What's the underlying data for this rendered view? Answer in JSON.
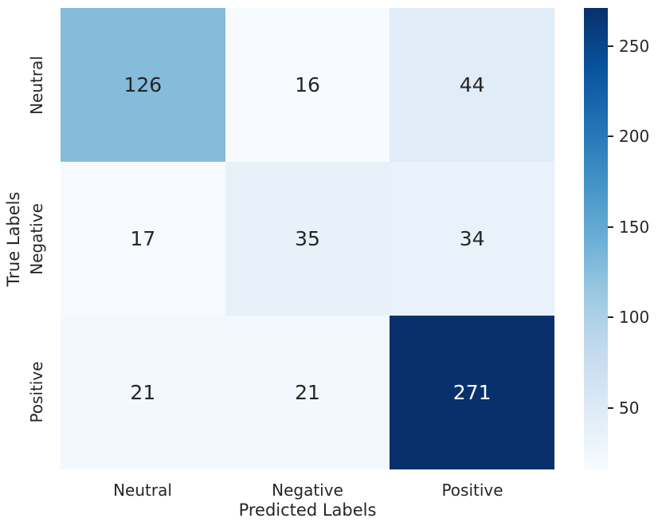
{
  "chart_data": {
    "type": "heatmap",
    "title": "",
    "xlabel": "Predicted Labels",
    "ylabel": "True Labels",
    "x_categories": [
      "Neutral",
      "Negative",
      "Positive"
    ],
    "y_categories": [
      "Neutral",
      "Negative",
      "Positive"
    ],
    "values": [
      [
        126,
        16,
        44
      ],
      [
        17,
        35,
        34
      ],
      [
        21,
        21,
        271
      ]
    ],
    "vmin": 16,
    "vmax": 271,
    "colormap": "Blues",
    "cell_colors": [
      [
        "#85bcdb",
        "#f7fbff",
        "#e0ecf7"
      ],
      [
        "#f6faff",
        "#e8f1fa",
        "#e9f2fb"
      ],
      [
        "#f2f8fd",
        "#f2f8fd",
        "#08306b"
      ]
    ],
    "annotation_colors": [
      [
        "#262626",
        "#262626",
        "#262626"
      ],
      [
        "#262626",
        "#262626",
        "#262626"
      ],
      [
        "#262626",
        "#262626",
        "#ffffff"
      ]
    ],
    "text_color": "#262626",
    "background_color": "#ffffff",
    "legend_position": "right-colorbar",
    "grid": false,
    "colorbar": {
      "ticks": [
        50,
        100,
        150,
        200,
        250
      ],
      "gradient_stops": [
        "#f7fbff",
        "#deebf7",
        "#c6dbef",
        "#9ecae1",
        "#6baed6",
        "#4292c6",
        "#2171b5",
        "#08519c",
        "#08306b"
      ]
    }
  }
}
